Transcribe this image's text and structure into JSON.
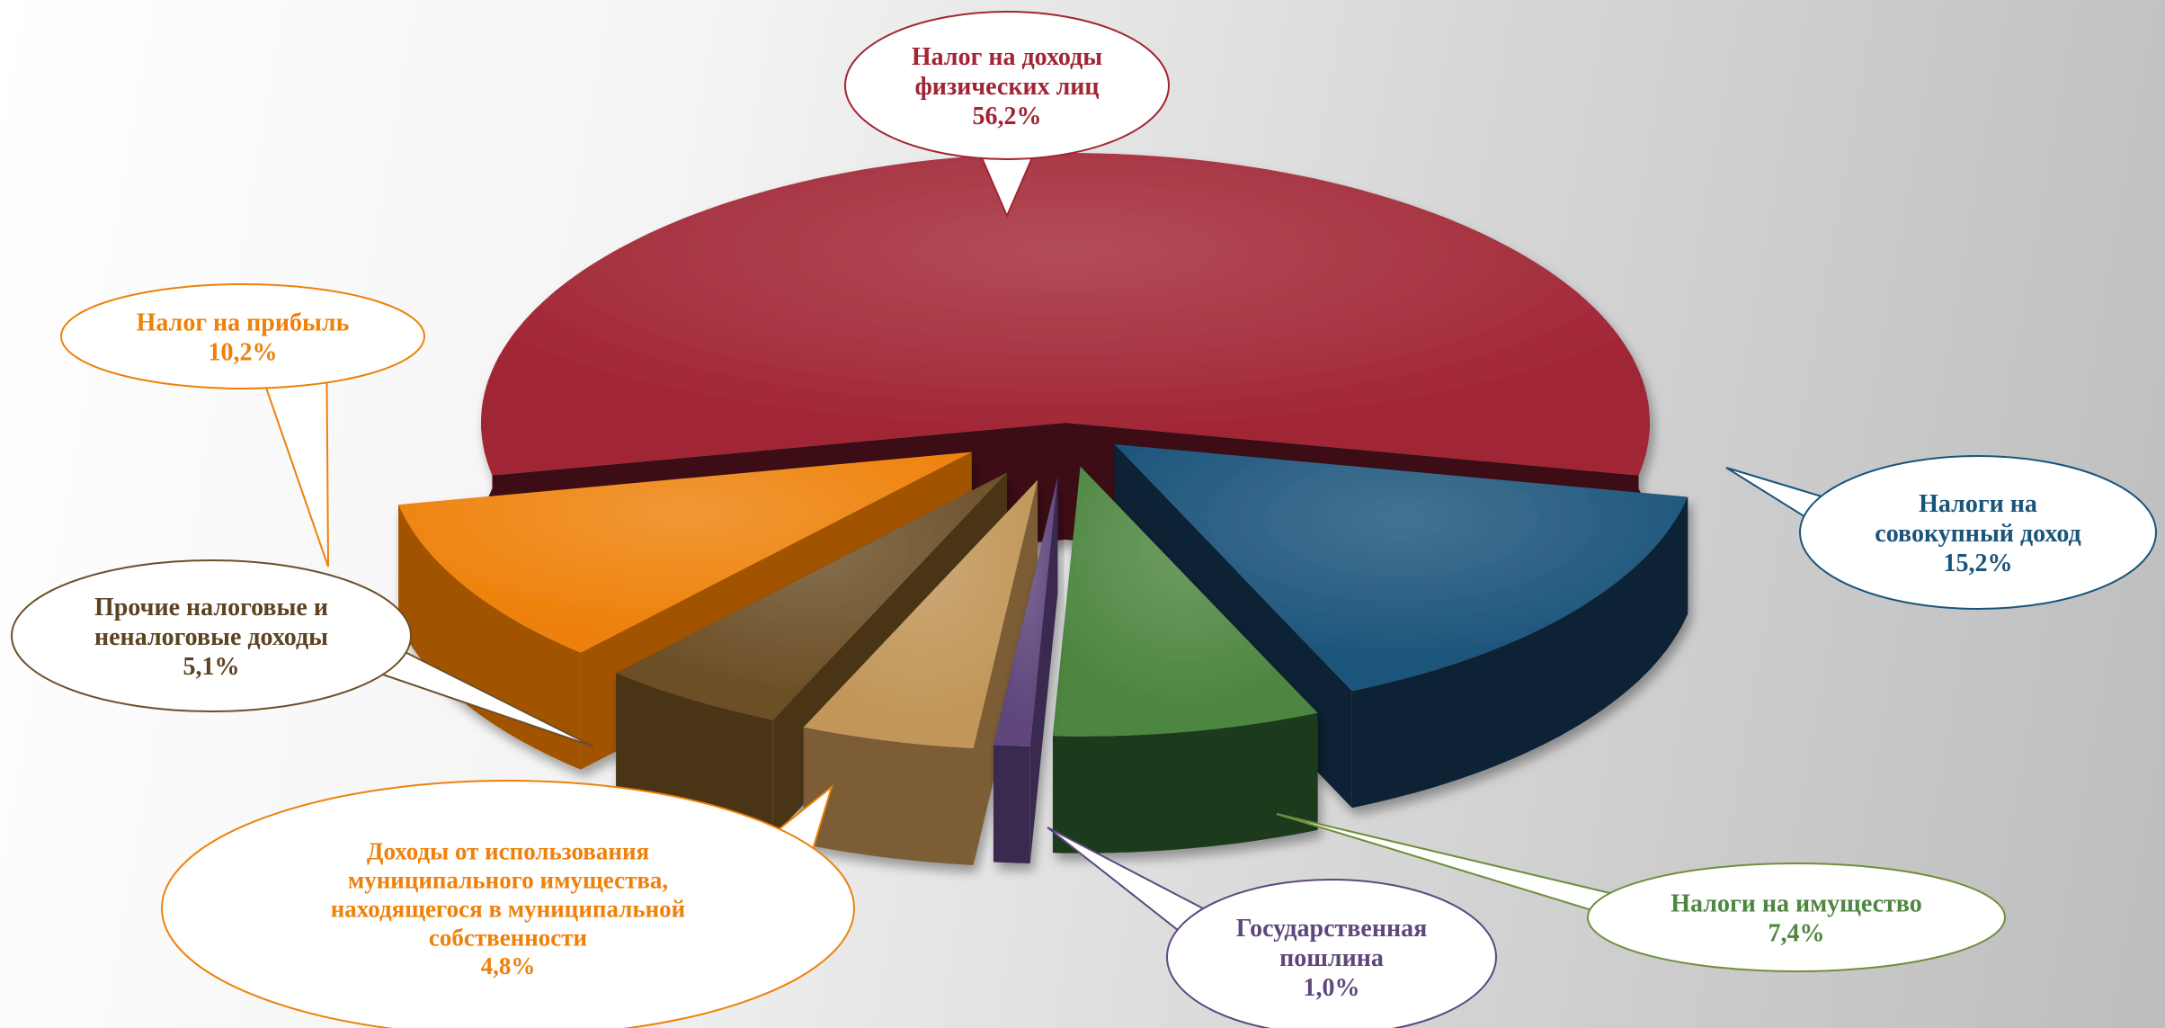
{
  "chart_data": {
    "type": "pie",
    "title": "",
    "slices": [
      {
        "label_lines": [
          "Налог на доходы",
          "физических лиц"
        ],
        "value_text": "56,2%",
        "value": 56.2,
        "color": "#a12534",
        "side": "#3d0f15"
      },
      {
        "label_lines": [
          "Налоги на",
          "совокупный доход"
        ],
        "value_text": "15,2%",
        "value": 15.2,
        "color": "#1b547b",
        "side": "#0a2435"
      },
      {
        "label_lines": [
          "Налоги на имущество"
        ],
        "value_text": "7,4%",
        "value": 7.4,
        "color": "#4e8641",
        "side": "#1f3a1a"
      },
      {
        "label_lines": [
          "Государственная",
          "пошлина"
        ],
        "value_text": "1,0%",
        "value": 1.0,
        "color": "#5f477d",
        "side": "#3a2a4f"
      },
      {
        "label_lines": [
          "Доходы от использования",
          "муниципального имущества,",
          "находящегося в муниципальной",
          "собственности"
        ],
        "value_text": "4,8%",
        "value": 4.8,
        "color": "#c19658",
        "side": "#7c5d34"
      },
      {
        "label_lines": [
          "Прочие налоговые и",
          "неналоговые доходы"
        ],
        "value_text": "5,1%",
        "value": 5.1,
        "color": "#6c4f27",
        "side": "#4a3519"
      },
      {
        "label_lines": [
          "Налог на прибыль"
        ],
        "value_text": "10,2%",
        "value": 10.2,
        "color": "#ee810a",
        "side": "#a25200"
      }
    ],
    "label_colors": [
      "#a12534",
      "#1b547b",
      "#4e8641",
      "#5f477d",
      "#ee810a",
      "#5c4321",
      "#ee810a"
    ],
    "border_colors": [
      "#a12534",
      "#1b547b",
      "#6e8f3d",
      "#5f477d",
      "#ee810a",
      "#6c4f27",
      "#ee810a"
    ]
  }
}
